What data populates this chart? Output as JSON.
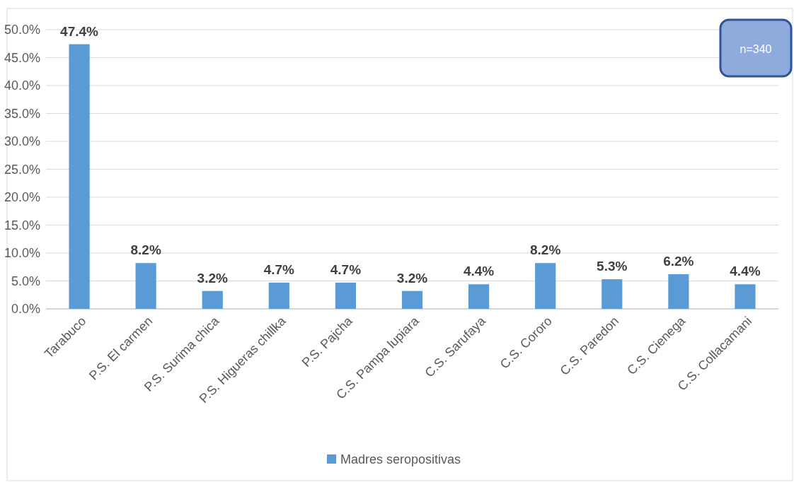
{
  "chart_data": {
    "type": "bar",
    "categories": [
      "Tarabuco",
      "P.S. El carmen",
      "P.S. Surima chica",
      "P.S. Higueras chillka",
      "P.S. Pajcha",
      "C.S. Pampa lupiara",
      "C.S. Sarufaya",
      "C.S. Cororo",
      "C.S. Paredon",
      "C.S. Cienega",
      "C.S. Collacamani"
    ],
    "series": [
      {
        "name": "Madres seropositivas",
        "color": "#5b9bd5",
        "values": [
          47.4,
          8.2,
          3.2,
          4.7,
          4.7,
          3.2,
          4.4,
          8.2,
          5.3,
          6.2,
          4.4
        ],
        "value_labels": [
          "47.4%",
          "8.2%",
          "3.2%",
          "4.7%",
          "4.7%",
          "3.2%",
          "4.4%",
          "8.2%",
          "5.3%",
          "6.2%",
          "4.4%"
        ]
      }
    ],
    "ylim": [
      0,
      50
    ],
    "yticks": [
      {
        "value": 0,
        "label": "0.0%"
      },
      {
        "value": 5,
        "label": "5.0%"
      },
      {
        "value": 10,
        "label": "10.0%"
      },
      {
        "value": 15,
        "label": "15.0%"
      },
      {
        "value": 20,
        "label": "20.0%"
      },
      {
        "value": 25,
        "label": "25.0%"
      },
      {
        "value": 30,
        "label": "30.0%"
      },
      {
        "value": 35,
        "label": "35.0%"
      },
      {
        "value": 40,
        "label": "40.0%"
      },
      {
        "value": 45,
        "label": "45.0%"
      },
      {
        "value": 50,
        "label": "50.0%"
      }
    ],
    "grid": "y",
    "legend": "bottom",
    "annotations": [
      "n=340"
    ]
  }
}
